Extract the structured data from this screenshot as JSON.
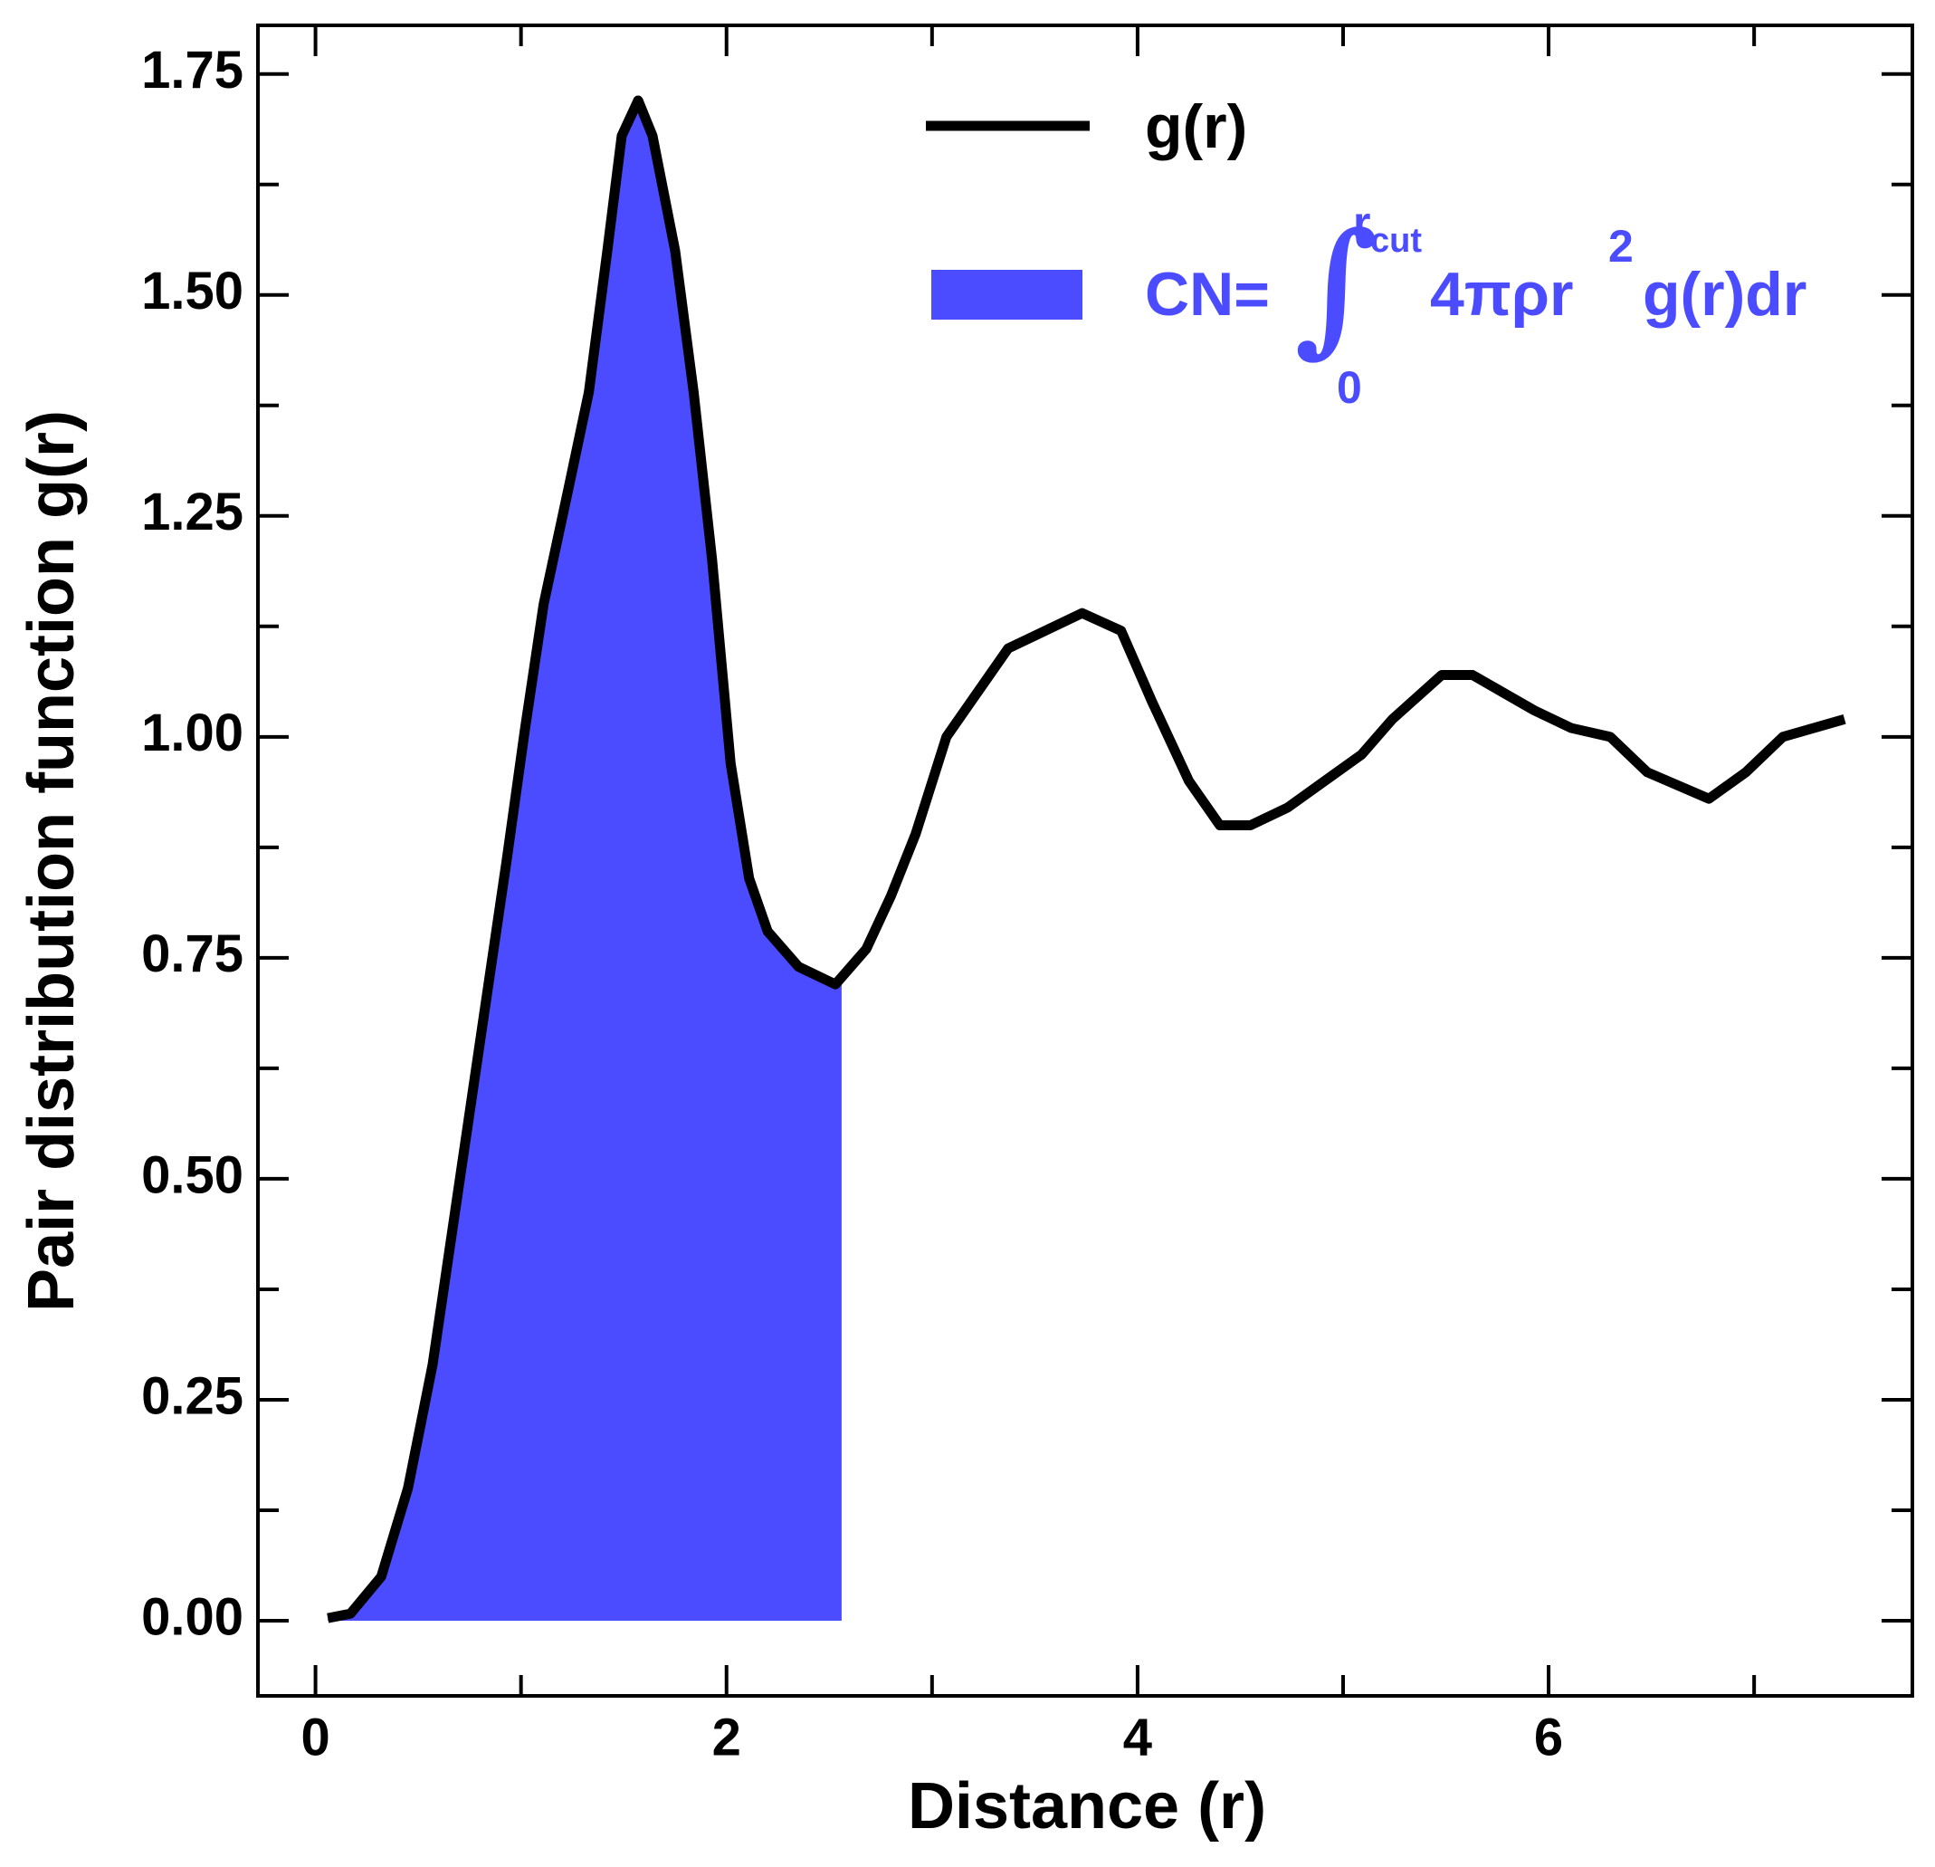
{
  "chart_data": {
    "type": "line",
    "xlabel": "Distance (r)",
    "ylabel": "Pair distribution function g(r)",
    "x": [
      0.06,
      0.17,
      0.32,
      0.45,
      0.57,
      0.69,
      0.81,
      0.93,
      1.02,
      1.11,
      1.23,
      1.33,
      1.42,
      1.49,
      1.57,
      1.64,
      1.75,
      1.84,
      1.93,
      2.02,
      2.11,
      2.2,
      2.35,
      2.53,
      2.68,
      2.8,
      2.92,
      3.07,
      3.22,
      3.37,
      3.55,
      3.73,
      3.92,
      4.07,
      4.25,
      4.4,
      4.55,
      4.73,
      4.91,
      5.09,
      5.24,
      5.48,
      5.63,
      5.93,
      6.11,
      6.3,
      6.48,
      6.78,
      6.96,
      7.14,
      7.44
    ],
    "series": [
      {
        "name": "g(r)",
        "color": "#000000",
        "values": [
          0.003,
          0.008,
          0.05,
          0.15,
          0.29,
          0.48,
          0.67,
          0.86,
          1.01,
          1.15,
          1.28,
          1.39,
          1.55,
          1.68,
          1.72,
          1.68,
          1.55,
          1.39,
          1.2,
          0.97,
          0.84,
          0.78,
          0.74,
          0.72,
          0.76,
          0.82,
          0.89,
          1.0,
          1.05,
          1.1,
          1.12,
          1.14,
          1.12,
          1.04,
          0.95,
          0.9,
          0.9,
          0.92,
          0.95,
          0.98,
          1.02,
          1.07,
          1.07,
          1.03,
          1.01,
          1.0,
          0.96,
          0.93,
          0.96,
          1.0,
          1.02
        ]
      }
    ],
    "fill": {
      "to_x": 2.56,
      "color": "#4b4bff",
      "label_parts": [
        "CN=",
        "∫",
        "r",
        "cut",
        "0",
        "4πρr",
        "2",
        "g(r)dr"
      ]
    },
    "xlim": [
      -0.28,
      7.77
    ],
    "ylim": [
      -0.085,
      1.805
    ],
    "xticks": [
      0,
      2,
      4,
      6
    ],
    "xminorticks": [
      1,
      3,
      5,
      7
    ],
    "yticks": [
      {
        "value": 0,
        "label": "0.00"
      },
      {
        "value": 0.25,
        "label": "0.25"
      },
      {
        "value": 0.5,
        "label": "0.50"
      },
      {
        "value": 0.75,
        "label": "0.75"
      },
      {
        "value": 1,
        "label": "1.00"
      },
      {
        "value": 1.25,
        "label": "1.25"
      },
      {
        "value": 1.5,
        "label": "1.50"
      },
      {
        "value": 1.75,
        "label": "1.75"
      }
    ],
    "yminorticks": [
      0.125,
      0.375,
      0.625,
      0.875,
      1.125,
      1.375,
      1.625
    ],
    "legend": "upper right"
  }
}
